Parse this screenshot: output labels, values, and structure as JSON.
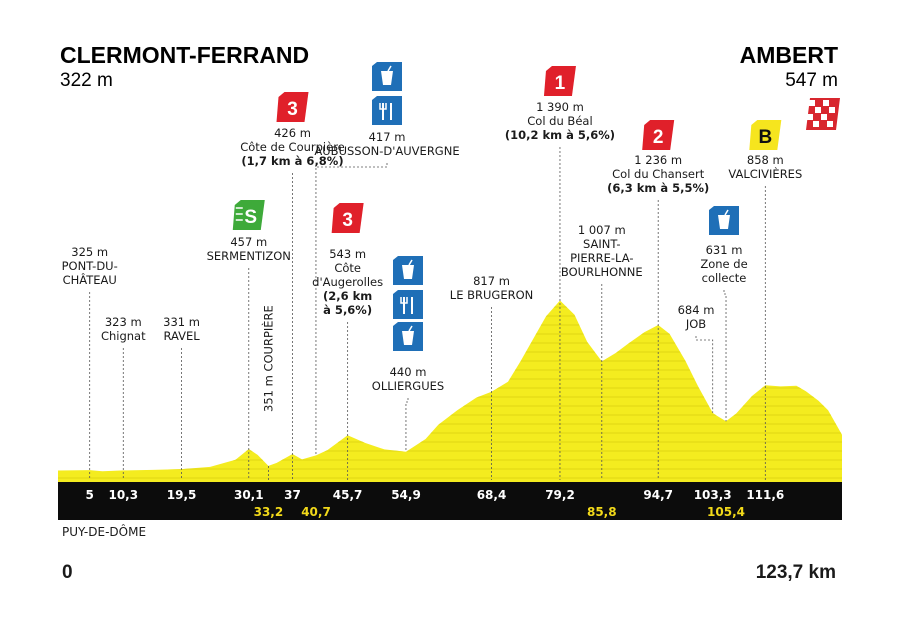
{
  "chart_data": {
    "type": "area",
    "start": {
      "name": "CLERMONT-FERRAND",
      "altitude": "322 m"
    },
    "finish": {
      "name": "AMBERT",
      "altitude": "547 m"
    },
    "region": "PUY-DE-DÔME",
    "distance_start": "0",
    "distance_end": "123,7 km",
    "xlim": [
      0,
      123.7
    ],
    "ylim": [
      250,
      1450
    ],
    "profile": [
      {
        "x": 0,
        "y": 322
      },
      {
        "x": 5,
        "y": 325
      },
      {
        "x": 7,
        "y": 318
      },
      {
        "x": 10.3,
        "y": 323
      },
      {
        "x": 15,
        "y": 326
      },
      {
        "x": 19.5,
        "y": 331
      },
      {
        "x": 24,
        "y": 345
      },
      {
        "x": 28,
        "y": 390
      },
      {
        "x": 30.1,
        "y": 457
      },
      {
        "x": 31.5,
        "y": 420
      },
      {
        "x": 33.2,
        "y": 351
      },
      {
        "x": 34.5,
        "y": 370
      },
      {
        "x": 37,
        "y": 426
      },
      {
        "x": 38.5,
        "y": 392
      },
      {
        "x": 40.7,
        "y": 417
      },
      {
        "x": 42.5,
        "y": 450
      },
      {
        "x": 45.7,
        "y": 543
      },
      {
        "x": 48.5,
        "y": 495
      },
      {
        "x": 51.5,
        "y": 455
      },
      {
        "x": 54.9,
        "y": 440
      },
      {
        "x": 58,
        "y": 520
      },
      {
        "x": 60,
        "y": 610
      },
      {
        "x": 63,
        "y": 700
      },
      {
        "x": 66,
        "y": 780
      },
      {
        "x": 68.4,
        "y": 817
      },
      {
        "x": 71,
        "y": 880
      },
      {
        "x": 73,
        "y": 1010
      },
      {
        "x": 75,
        "y": 1150
      },
      {
        "x": 77,
        "y": 1290
      },
      {
        "x": 79.2,
        "y": 1390
      },
      {
        "x": 81.5,
        "y": 1300
      },
      {
        "x": 83.5,
        "y": 1130
      },
      {
        "x": 85.8,
        "y": 1007
      },
      {
        "x": 88,
        "y": 1060
      },
      {
        "x": 90,
        "y": 1120
      },
      {
        "x": 92.5,
        "y": 1190
      },
      {
        "x": 94.7,
        "y": 1236
      },
      {
        "x": 96.5,
        "y": 1180
      },
      {
        "x": 99,
        "y": 1010
      },
      {
        "x": 101,
        "y": 850
      },
      {
        "x": 103.3,
        "y": 684
      },
      {
        "x": 104,
        "y": 665
      },
      {
        "x": 105.4,
        "y": 631
      },
      {
        "x": 107,
        "y": 680
      },
      {
        "x": 109.5,
        "y": 790
      },
      {
        "x": 111.6,
        "y": 858
      },
      {
        "x": 114,
        "y": 850
      },
      {
        "x": 116.5,
        "y": 855
      },
      {
        "x": 118,
        "y": 820
      },
      {
        "x": 120,
        "y": 760
      },
      {
        "x": 121.5,
        "y": 700
      },
      {
        "x": 123.7,
        "y": 547
      }
    ],
    "km_labels": [
      {
        "x": 5,
        "text": "5",
        "row": 1,
        "color": "#ffffff"
      },
      {
        "x": 10.3,
        "text": "10,3",
        "row": 1,
        "color": "#ffffff"
      },
      {
        "x": 19.5,
        "text": "19,5",
        "row": 1,
        "color": "#ffffff"
      },
      {
        "x": 30.1,
        "text": "30,1",
        "row": 1,
        "color": "#ffffff"
      },
      {
        "x": 33.2,
        "text": "33,2",
        "row": 2,
        "color": "#f2d91a"
      },
      {
        "x": 37,
        "text": "37",
        "row": 1,
        "color": "#ffffff"
      },
      {
        "x": 40.7,
        "text": "40,7",
        "row": 2,
        "color": "#f2d91a"
      },
      {
        "x": 45.7,
        "text": "45,7",
        "row": 1,
        "color": "#ffffff"
      },
      {
        "x": 54.9,
        "text": "54,9",
        "row": 1,
        "color": "#ffffff"
      },
      {
        "x": 68.4,
        "text": "68,4",
        "row": 1,
        "color": "#ffffff"
      },
      {
        "x": 79.2,
        "text": "79,2",
        "row": 1,
        "color": "#ffffff"
      },
      {
        "x": 85.8,
        "text": "85,8",
        "row": 2,
        "color": "#f2d91a"
      },
      {
        "x": 94.7,
        "text": "94,7",
        "row": 1,
        "color": "#ffffff"
      },
      {
        "x": 103.3,
        "text": "103,3",
        "row": 1,
        "color": "#ffffff"
      },
      {
        "x": 105.4,
        "text": "105,4",
        "row": 2,
        "color": "#f2d91a"
      },
      {
        "x": 111.6,
        "text": "111,6",
        "row": 1,
        "color": "#ffffff"
      }
    ],
    "waypoints": [
      {
        "x": 5,
        "y": 325,
        "lines": [
          "325 m",
          "PONT-DU-",
          "CHÂTEAU"
        ]
      },
      {
        "x": 10.3,
        "y": 323,
        "lines": [
          "323 m",
          "Chignat"
        ]
      },
      {
        "x": 19.5,
        "y": 331,
        "lines": [
          "331 m",
          "RAVEL"
        ]
      },
      {
        "x": 30.1,
        "y": 457,
        "lines": [
          "457 m",
          "SERMENTIZON"
        ],
        "icon": "sprint-icon",
        "icon_text": "S"
      },
      {
        "x": 33.2,
        "y": 351,
        "vertical": "351 m COURPIÈRE"
      },
      {
        "x": 37,
        "y": 426,
        "lines": [
          "426 m",
          "Côte de Courpière",
          "(1,7 km à 6,8%)"
        ],
        "icon": "climb-cat3-icon",
        "icon_text": "3"
      },
      {
        "x": 40.7,
        "y": 417,
        "lines": [
          "417 m",
          "AUBUSSON-D'AUVERGNE"
        ],
        "icon": "feed-zone-icon"
      },
      {
        "x": 45.7,
        "y": 543,
        "lines": [
          "543 m",
          "Côte",
          "d'Augerolles",
          "(2,6 km",
          "à 5,6%)"
        ],
        "icon": "climb-cat3-icon",
        "icon_text": "3"
      },
      {
        "x": 54.9,
        "y": 440,
        "lines": [
          "440 m",
          "OLLIERGUES"
        ],
        "icon": "feed-zone-icon"
      },
      {
        "x": 68.4,
        "y": 817,
        "lines": [
          "817 m",
          "LE BRUGERON"
        ]
      },
      {
        "x": 79.2,
        "y": 1390,
        "lines": [
          "1 390 m",
          "Col du Béal",
          "(10,2 km à 5,6%)"
        ],
        "icon": "climb-cat1-icon",
        "icon_text": "1"
      },
      {
        "x": 85.8,
        "y": 1007,
        "lines": [
          "1 007 m",
          "SAINT-",
          "PIERRE-LA-",
          "BOURLHONNE"
        ]
      },
      {
        "x": 94.7,
        "y": 1236,
        "lines": [
          "1 236 m",
          "Col du Chansert",
          "(6,3 km à 5,5%)"
        ],
        "icon": "climb-cat2-icon",
        "icon_text": "2"
      },
      {
        "x": 103.3,
        "y": 684,
        "lines": [
          "684 m",
          "JOB"
        ]
      },
      {
        "x": 105.4,
        "y": 631,
        "lines": [
          "631 m",
          "Zone de",
          "collecte"
        ],
        "icon": "feed-zone-icon"
      },
      {
        "x": 111.6,
        "y": 858,
        "lines": [
          "858 m",
          "VALCIVIÈRES"
        ],
        "icon": "bonus-icon",
        "icon_text": "B"
      }
    ],
    "colors": {
      "profile": "#f4ec1f",
      "bar": "#0c0c0c",
      "climb": "#e0202a",
      "sprint": "#3eaa3a",
      "feed": "#1f6fb7",
      "bonus": "#f6e51e",
      "gold": "#f2d91a"
    }
  }
}
